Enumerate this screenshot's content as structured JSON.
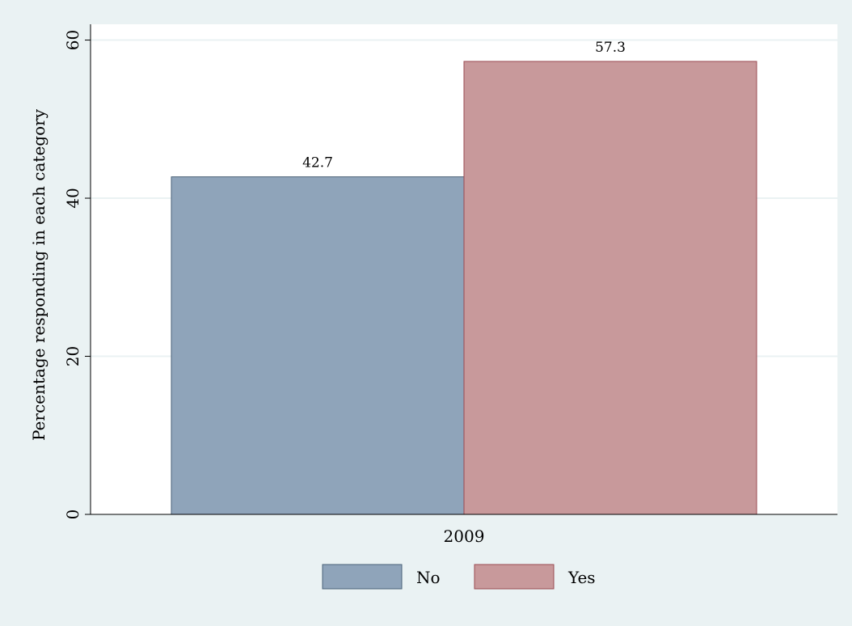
{
  "chart_data": {
    "type": "bar",
    "categories": [
      "2009"
    ],
    "series": [
      {
        "name": "No",
        "values": [
          42.7
        ],
        "color": "#8fa4ba",
        "edge": "#4a6178"
      },
      {
        "name": "Yes",
        "values": [
          57.3
        ],
        "color": "#c8999b",
        "edge": "#9a4a52"
      }
    ],
    "title": "",
    "xlabel": "",
    "ylabel": "Percentage responding in each category",
    "ylim": [
      0,
      62
    ],
    "yticks": [
      0,
      20,
      40,
      60
    ],
    "data_labels": [
      "42.7",
      "57.3"
    ],
    "grid": true,
    "legend_position": "bottom",
    "colors": {
      "background": "#eaf2f3",
      "plot_area": "#ffffff",
      "grid": "#eaf2f3"
    }
  }
}
